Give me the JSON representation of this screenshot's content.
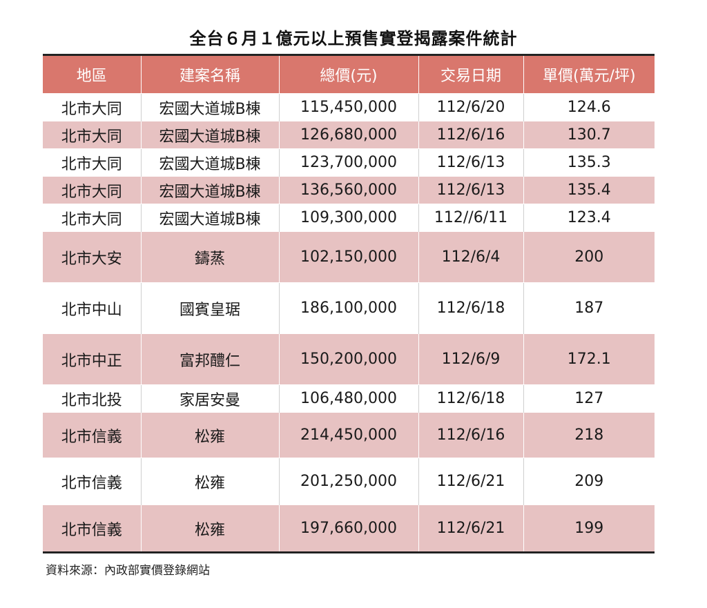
{
  "title": "全台６月１億元以上預售實登揭露案件統計",
  "headers": [
    "地區",
    "建案名稱",
    "總價(元)",
    "交易日期",
    "單價(萬元/坪)"
  ],
  "rows": [
    {
      "district": "北市大同",
      "project": "宏國大道城B棟",
      "total": "115,450,000",
      "date": "112/6/20",
      "unit": "124.6"
    },
    {
      "district": "北市大同",
      "project": "宏國大道城B棟",
      "total": "126,680,000",
      "date": "112/6/16",
      "unit": "130.7"
    },
    {
      "district": "北市大同",
      "project": "宏國大道城B棟",
      "total": "123,700,000",
      "date": "112/6/13",
      "unit": "135.3"
    },
    {
      "district": "北市大同",
      "project": "宏國大道城B棟",
      "total": "136,560,000",
      "date": "112/6/13",
      "unit": "135.4"
    },
    {
      "district": "北市大同",
      "project": "宏國大道城B棟",
      "total": "109,300,000",
      "date": "112//6/11",
      "unit": "123.4"
    },
    {
      "district": "北市大安",
      "project": "鑄蒸",
      "total": "102,150,000",
      "date": "112/6/4",
      "unit": "200"
    },
    {
      "district": "北市中山",
      "project": "國賓皇琚",
      "total": "186,100,000",
      "date": "112/6/18",
      "unit": "187"
    },
    {
      "district": "北市中正",
      "project": "富邦醴仁",
      "total": "150,200,000",
      "date": "112/6/9",
      "unit": "172.1"
    },
    {
      "district": "北市北投",
      "project": "家居安曼",
      "total": "106,480,000",
      "date": "112/6/18",
      "unit": "127"
    },
    {
      "district": "北市信義",
      "project": "松雍",
      "total": "214,450,000",
      "date": "112/6/16",
      "unit": "218"
    },
    {
      "district": "北市信義",
      "project": "松雍",
      "total": "201,250,000",
      "date": "112/6/21",
      "unit": "209"
    },
    {
      "district": "北市信義",
      "project": "松雍",
      "total": "197,660,000",
      "date": "112/6/21",
      "unit": "199"
    }
  ],
  "source": "資料來源：內政部實價登錄網站",
  "colors": {
    "header_bg": "#d9776d",
    "alt_row_bg": "#e7c2c2"
  }
}
